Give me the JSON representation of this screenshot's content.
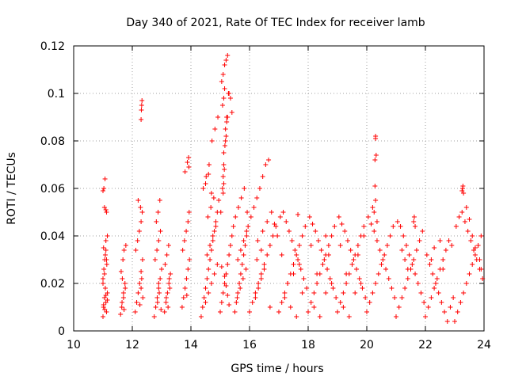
{
  "chart_data": {
    "type": "scatter",
    "title": "Day 340 of 2021, Rate Of TEC Index for receiver lamb",
    "xlabel": "GPS time / hours",
    "ylabel": "ROTI / TECUs",
    "xlim": [
      10,
      24
    ],
    "ylim": [
      0,
      0.12
    ],
    "xticks": [
      10,
      12,
      14,
      16,
      18,
      20,
      22,
      24
    ],
    "yticks": [
      0,
      0.02,
      0.04,
      0.06,
      0.08,
      0.1,
      0.12
    ],
    "xtick_labels": [
      "10",
      "12",
      "14",
      "16",
      "18",
      "20",
      "22",
      "24"
    ],
    "ytick_labels": [
      "0",
      "0.02",
      "0.04",
      "0.06",
      "0.08",
      "0.1",
      "0.12"
    ],
    "grid": true,
    "marker": "plus",
    "color": "#ff0000",
    "series": [
      {
        "name": "ROTI",
        "x": [
          11.0,
          11.02,
          11.05,
          11.08,
          11.1,
          11.12,
          11.15,
          11.0,
          11.03,
          11.06,
          11.1,
          11.13,
          11.0,
          11.05,
          11.1,
          11.15,
          11.02,
          11.08,
          11.12,
          11.05,
          11.1,
          11.0,
          11.03,
          11.07,
          11.12,
          11.15,
          11.02,
          11.06,
          11.1,
          11.6,
          11.65,
          11.7,
          11.75,
          11.62,
          11.68,
          11.72,
          11.78,
          11.64,
          11.7,
          11.76,
          11.66,
          11.72,
          12.1,
          12.15,
          12.2,
          12.25,
          12.3,
          12.35,
          12.12,
          12.18,
          12.24,
          12.3,
          12.34,
          12.2,
          12.28,
          12.3,
          12.32,
          12.33,
          12.31,
          12.36,
          12.3,
          12.26,
          12.32,
          12.75,
          12.8,
          12.85,
          12.9,
          12.95,
          13.0,
          12.78,
          12.84,
          12.9,
          12.96,
          12.82,
          12.88,
          12.94,
          12.86,
          12.92,
          12.9,
          12.98,
          13.1,
          13.15,
          13.2,
          13.25,
          13.3,
          13.12,
          13.18,
          13.24,
          13.28,
          13.16,
          13.22,
          13.26,
          13.7,
          13.75,
          13.8,
          13.85,
          13.9,
          13.95,
          13.72,
          13.78,
          13.84,
          13.9,
          13.94,
          13.8,
          13.88,
          13.92,
          13.93,
          13.86,
          14.35,
          14.4,
          14.45,
          14.5,
          14.55,
          14.6,
          14.65,
          14.7,
          14.75,
          14.8,
          14.85,
          14.9,
          14.95,
          14.42,
          14.52,
          14.62,
          14.72,
          14.82,
          14.92,
          14.5,
          14.6,
          14.7,
          14.8,
          14.9,
          14.55,
          14.65,
          14.75,
          14.85,
          14.58,
          14.68,
          14.78,
          14.5,
          14.6,
          14.7,
          15.0,
          15.05,
          15.1,
          15.15,
          15.2,
          15.25,
          15.3,
          15.35,
          15.4,
          15.45,
          15.02,
          15.08,
          15.12,
          15.18,
          15.22,
          15.28,
          15.05,
          15.1,
          15.15,
          15.2,
          15.25,
          15.08,
          15.12,
          15.15,
          15.18,
          15.22,
          15.25,
          15.12,
          15.16,
          15.2,
          15.1,
          15.14,
          15.1,
          15.12,
          15.3,
          15.35,
          15.4,
          15.25,
          15.3,
          15.2,
          15.15,
          15.05,
          15.5,
          15.55,
          15.6,
          15.65,
          15.7,
          15.75,
          15.8,
          15.85,
          15.9,
          15.95,
          15.52,
          15.62,
          15.72,
          15.82,
          15.92,
          15.58,
          15.68,
          15.78,
          15.88,
          15.6,
          15.7,
          15.8,
          15.9,
          16.0,
          16.1,
          16.2,
          16.3,
          16.4,
          16.5,
          16.6,
          16.7,
          16.8,
          16.9,
          16.05,
          16.15,
          16.25,
          16.35,
          16.45,
          16.55,
          16.65,
          16.75,
          16.85,
          16.95,
          16.2,
          16.3,
          16.4,
          16.5,
          16.25,
          16.4,
          16.28,
          16.45,
          16.6,
          16.7,
          17.0,
          17.1,
          17.2,
          17.3,
          17.4,
          17.5,
          17.6,
          17.7,
          17.8,
          17.9,
          17.05,
          17.15,
          17.25,
          17.35,
          17.45,
          17.55,
          17.65,
          17.75,
          17.85,
          17.95,
          17.2,
          17.4,
          17.6,
          17.8,
          17.3,
          17.5,
          17.7,
          17.1,
          17.65,
          18.0,
          18.1,
          18.2,
          18.3,
          18.4,
          18.5,
          18.6,
          18.7,
          18.8,
          18.9,
          18.05,
          18.15,
          18.25,
          18.35,
          18.45,
          18.55,
          18.65,
          18.75,
          18.85,
          18.95,
          18.2,
          18.4,
          18.6,
          18.8,
          18.3,
          18.5,
          18.7,
          18.1,
          18.6,
          19.0,
          19.1,
          19.2,
          19.3,
          19.4,
          19.5,
          19.6,
          19.7,
          19.8,
          19.9,
          19.05,
          19.15,
          19.25,
          19.35,
          19.45,
          19.55,
          19.65,
          19.75,
          19.85,
          19.95,
          19.2,
          19.4,
          19.6,
          19.8,
          19.3,
          19.5,
          19.7,
          19.1,
          19.9,
          20.0,
          20.1,
          20.2,
          20.3,
          20.4,
          20.5,
          20.6,
          20.7,
          20.8,
          20.9,
          20.05,
          20.15,
          20.25,
          20.35,
          20.45,
          20.55,
          20.65,
          20.75,
          20.85,
          20.95,
          20.28,
          20.3,
          20.3,
          20.32,
          20.28,
          20.3,
          20.25,
          20.35,
          20.2,
          21.0,
          21.1,
          21.2,
          21.3,
          21.4,
          21.5,
          21.6,
          21.7,
          21.8,
          21.9,
          21.05,
          21.15,
          21.25,
          21.35,
          21.45,
          21.55,
          21.65,
          21.75,
          21.85,
          21.95,
          21.6,
          21.62,
          21.65,
          21.3,
          21.2,
          21.4,
          22.0,
          22.1,
          22.2,
          22.3,
          22.4,
          22.5,
          22.6,
          22.7,
          22.8,
          22.9,
          22.05,
          22.15,
          22.25,
          22.35,
          22.45,
          22.55,
          22.65,
          22.75,
          22.85,
          22.95,
          22.3,
          22.5,
          22.2,
          22.6,
          23.0,
          23.1,
          23.2,
          23.3,
          23.4,
          23.5,
          23.6,
          23.7,
          23.8,
          23.9,
          23.05,
          23.15,
          23.25,
          23.35,
          23.45,
          23.55,
          23.65,
          23.75,
          23.85,
          23.95,
          23.25,
          23.27,
          23.28,
          23.3,
          23.4,
          23.5,
          23.6,
          23.7,
          23.85,
          23.9
        ],
        "y": [
          0.006,
          0.01,
          0.014,
          0.018,
          0.012,
          0.008,
          0.016,
          0.022,
          0.026,
          0.03,
          0.034,
          0.028,
          0.02,
          0.024,
          0.038,
          0.04,
          0.035,
          0.032,
          0.05,
          0.052,
          0.051,
          0.059,
          0.06,
          0.064,
          0.03,
          0.013,
          0.011,
          0.009,
          0.015,
          0.007,
          0.012,
          0.016,
          0.02,
          0.025,
          0.03,
          0.034,
          0.036,
          0.01,
          0.014,
          0.018,
          0.022,
          0.009,
          0.008,
          0.012,
          0.016,
          0.02,
          0.025,
          0.03,
          0.034,
          0.038,
          0.042,
          0.046,
          0.05,
          0.055,
          0.052,
          0.089,
          0.095,
          0.097,
          0.093,
          0.014,
          0.018,
          0.011,
          0.022,
          0.006,
          0.01,
          0.014,
          0.018,
          0.022,
          0.026,
          0.03,
          0.034,
          0.038,
          0.042,
          0.046,
          0.05,
          0.055,
          0.012,
          0.016,
          0.02,
          0.009,
          0.008,
          0.012,
          0.016,
          0.02,
          0.024,
          0.028,
          0.032,
          0.036,
          0.018,
          0.014,
          0.01,
          0.022,
          0.01,
          0.014,
          0.018,
          0.022,
          0.026,
          0.03,
          0.034,
          0.038,
          0.042,
          0.046,
          0.05,
          0.067,
          0.071,
          0.073,
          0.069,
          0.015,
          0.006,
          0.01,
          0.014,
          0.018,
          0.022,
          0.026,
          0.03,
          0.034,
          0.038,
          0.042,
          0.046,
          0.05,
          0.055,
          0.06,
          0.065,
          0.07,
          0.08,
          0.085,
          0.09,
          0.012,
          0.016,
          0.02,
          0.024,
          0.028,
          0.032,
          0.036,
          0.04,
          0.044,
          0.048,
          0.052,
          0.056,
          0.062,
          0.066,
          0.058,
          0.008,
          0.012,
          0.016,
          0.02,
          0.024,
          0.028,
          0.032,
          0.036,
          0.04,
          0.044,
          0.05,
          0.06,
          0.07,
          0.08,
          0.09,
          0.1,
          0.105,
          0.108,
          0.112,
          0.114,
          0.116,
          0.095,
          0.098,
          0.102,
          0.085,
          0.088,
          0.09,
          0.075,
          0.078,
          0.082,
          0.065,
          0.068,
          0.058,
          0.062,
          0.1,
          0.098,
          0.092,
          0.015,
          0.011,
          0.019,
          0.023,
          0.027,
          0.008,
          0.012,
          0.016,
          0.02,
          0.024,
          0.028,
          0.032,
          0.036,
          0.04,
          0.044,
          0.048,
          0.052,
          0.056,
          0.06,
          0.05,
          0.014,
          0.018,
          0.022,
          0.026,
          0.03,
          0.034,
          0.038,
          0.042,
          0.008,
          0.012,
          0.016,
          0.02,
          0.024,
          0.028,
          0.032,
          0.036,
          0.04,
          0.044,
          0.048,
          0.052,
          0.056,
          0.06,
          0.065,
          0.07,
          0.072,
          0.05,
          0.045,
          0.04,
          0.014,
          0.018,
          0.022,
          0.026,
          0.03,
          0.034,
          0.038,
          0.042,
          0.046,
          0.01,
          0.008,
          0.012,
          0.016,
          0.02,
          0.024,
          0.028,
          0.032,
          0.036,
          0.04,
          0.044,
          0.048,
          0.05,
          0.046,
          0.042,
          0.038,
          0.034,
          0.03,
          0.026,
          0.022,
          0.018,
          0.014,
          0.01,
          0.006,
          0.016,
          0.02,
          0.024,
          0.028,
          0.032,
          0.049,
          0.008,
          0.012,
          0.016,
          0.02,
          0.024,
          0.028,
          0.032,
          0.036,
          0.04,
          0.044,
          0.048,
          0.045,
          0.042,
          0.038,
          0.034,
          0.03,
          0.026,
          0.022,
          0.018,
          0.014,
          0.01,
          0.006,
          0.016,
          0.02,
          0.024,
          0.028,
          0.032,
          0.036,
          0.04,
          0.008,
          0.012,
          0.016,
          0.02,
          0.024,
          0.028,
          0.032,
          0.036,
          0.04,
          0.044,
          0.048,
          0.045,
          0.042,
          0.038,
          0.034,
          0.03,
          0.026,
          0.022,
          0.018,
          0.014,
          0.01,
          0.006,
          0.016,
          0.02,
          0.024,
          0.028,
          0.032,
          0.036,
          0.04,
          0.008,
          0.012,
          0.016,
          0.02,
          0.024,
          0.028,
          0.032,
          0.036,
          0.04,
          0.044,
          0.048,
          0.045,
          0.042,
          0.038,
          0.034,
          0.03,
          0.026,
          0.022,
          0.018,
          0.014,
          0.072,
          0.081,
          0.082,
          0.074,
          0.061,
          0.055,
          0.05,
          0.046,
          0.052,
          0.006,
          0.01,
          0.014,
          0.018,
          0.022,
          0.026,
          0.03,
          0.034,
          0.038,
          0.042,
          0.046,
          0.044,
          0.04,
          0.036,
          0.032,
          0.028,
          0.024,
          0.02,
          0.016,
          0.012,
          0.046,
          0.048,
          0.044,
          0.03,
          0.034,
          0.026,
          0.006,
          0.01,
          0.014,
          0.018,
          0.022,
          0.026,
          0.03,
          0.034,
          0.038,
          0.036,
          0.032,
          0.028,
          0.024,
          0.02,
          0.016,
          0.012,
          0.008,
          0.004,
          0.01,
          0.014,
          0.035,
          0.038,
          0.03,
          0.026,
          0.004,
          0.008,
          0.012,
          0.016,
          0.02,
          0.024,
          0.028,
          0.032,
          0.036,
          0.04,
          0.044,
          0.048,
          0.05,
          0.046,
          0.042,
          0.038,
          0.034,
          0.03,
          0.026,
          0.022,
          0.059,
          0.06,
          0.061,
          0.058,
          0.052,
          0.047,
          0.04,
          0.035,
          0.03,
          0.026
        ]
      }
    ]
  }
}
